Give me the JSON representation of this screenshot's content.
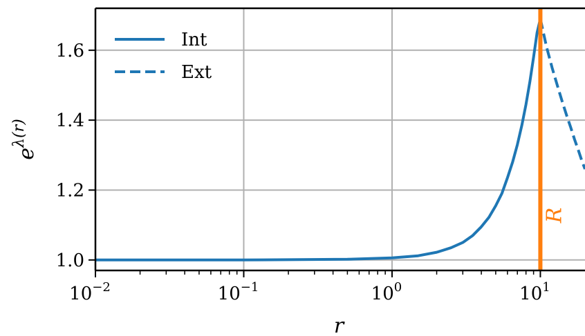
{
  "chart_data": {
    "type": "line",
    "title": "",
    "xlabel": "r",
    "ylabel": "e^{λ(r)}",
    "xscale": "log",
    "xlim": [
      0.01,
      20
    ],
    "ylim": [
      0.97,
      1.72
    ],
    "grid": true,
    "legend_position": "top-left",
    "x_ticks": [
      {
        "value": 0.01,
        "base": "10",
        "exp": "−2"
      },
      {
        "value": 0.1,
        "base": "10",
        "exp": "−1"
      },
      {
        "value": 1,
        "base": "10",
        "exp": "0"
      },
      {
        "value": 10,
        "base": "10",
        "exp": "1"
      }
    ],
    "y_ticks": [
      {
        "value": 1.0,
        "label": "1.0"
      },
      {
        "value": 1.2,
        "label": "1.2"
      },
      {
        "value": 1.4,
        "label": "1.4"
      },
      {
        "value": 1.6,
        "label": "1.6"
      }
    ],
    "series": [
      {
        "name": "Int",
        "style": "solid",
        "color": "#1f77b4",
        "points": [
          [
            0.01,
            1.0
          ],
          [
            0.1,
            1.0
          ],
          [
            0.5,
            1.002
          ],
          [
            1.0,
            1.006
          ],
          [
            1.5,
            1.012
          ],
          [
            2.0,
            1.022
          ],
          [
            2.5,
            1.035
          ],
          [
            3.0,
            1.05
          ],
          [
            3.5,
            1.07
          ],
          [
            4.0,
            1.095
          ],
          [
            4.5,
            1.122
          ],
          [
            5.0,
            1.155
          ],
          [
            5.5,
            1.19
          ],
          [
            6.0,
            1.235
          ],
          [
            6.5,
            1.28
          ],
          [
            7.0,
            1.33
          ],
          [
            7.5,
            1.385
          ],
          [
            8.0,
            1.445
          ],
          [
            8.5,
            1.51
          ],
          [
            9.0,
            1.58
          ],
          [
            9.5,
            1.65
          ],
          [
            10.0,
            1.69
          ]
        ]
      },
      {
        "name": "Ext",
        "style": "dashed",
        "color": "#1f77b4",
        "points": [
          [
            10.0,
            1.69
          ],
          [
            11.0,
            1.61
          ],
          [
            12.0,
            1.55
          ],
          [
            13.0,
            1.5
          ],
          [
            14.0,
            1.455
          ],
          [
            15.0,
            1.415
          ],
          [
            16.0,
            1.38
          ],
          [
            17.0,
            1.345
          ],
          [
            18.0,
            1.315
          ],
          [
            19.0,
            1.285
          ],
          [
            20.0,
            1.26
          ]
        ]
      }
    ],
    "vline": {
      "x": 10,
      "label": "R",
      "color": "#ff7f0e"
    }
  }
}
